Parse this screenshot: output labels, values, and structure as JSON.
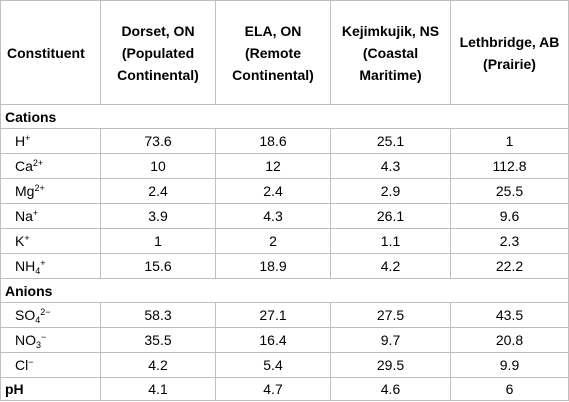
{
  "header": {
    "constituent": "Constituent",
    "sites": [
      {
        "line1": "Dorset, ON",
        "line2": "(Populated",
        "line3": "Continental)"
      },
      {
        "line1": "ELA, ON",
        "line2": "(Remote",
        "line3": "Continental)"
      },
      {
        "line1": "Kejimkujik, NS",
        "line2": "(Coastal",
        "line3": "Maritime)"
      },
      {
        "line1": "Lethbridge, AB",
        "line2": "(Prairie)",
        "line3": ""
      }
    ]
  },
  "sections": {
    "cations": "Cations",
    "anions": "Anions"
  },
  "cations": [
    {
      "base": "H",
      "sub": "",
      "sup": "+",
      "values": [
        "73.6",
        "18.6",
        "25.1",
        "1"
      ]
    },
    {
      "base": "Ca",
      "sub": "",
      "sup": "2+",
      "values": [
        "10",
        "12",
        "4.3",
        "112.8"
      ]
    },
    {
      "base": "Mg",
      "sub": "",
      "sup": "2+",
      "values": [
        "2.4",
        "2.4",
        "2.9",
        "25.5"
      ]
    },
    {
      "base": "Na",
      "sub": "",
      "sup": "+",
      "values": [
        "3.9",
        "4.3",
        "26.1",
        "9.6"
      ]
    },
    {
      "base": "K",
      "sub": "",
      "sup": "+",
      "values": [
        "1",
        "2",
        "1.1",
        "2.3"
      ]
    },
    {
      "base": "NH",
      "sub": "4",
      "sup": "+",
      "values": [
        "15.6",
        "18.9",
        "4.2",
        "22.2"
      ]
    }
  ],
  "anions": [
    {
      "base": "SO",
      "sub": "4",
      "sup": "2−",
      "values": [
        "58.3",
        "27.1",
        "27.5",
        "43.5"
      ]
    },
    {
      "base": "NO",
      "sub": "3",
      "sup": "−",
      "values": [
        "35.5",
        "16.4",
        "9.7",
        "20.8"
      ]
    },
    {
      "base": "Cl",
      "sub": "",
      "sup": "−",
      "values": [
        "4.2",
        "5.4",
        "29.5",
        "9.9"
      ]
    }
  ],
  "ph": {
    "label": "pH",
    "values": [
      "4.1",
      "4.7",
      "4.6",
      "6"
    ]
  }
}
